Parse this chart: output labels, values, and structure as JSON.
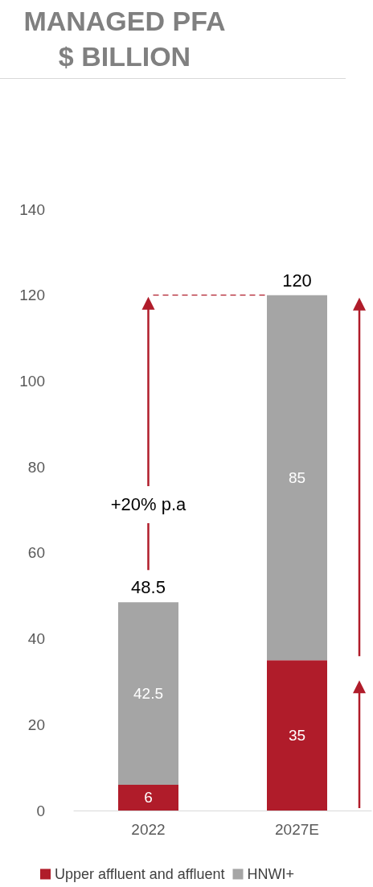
{
  "chart_data": {
    "type": "bar",
    "title": "MANAGED PFA\n$ BILLION",
    "categories": [
      "2022",
      "2027E"
    ],
    "stacked": true,
    "series": [
      {
        "name": "Upper affluent and affluent",
        "color": "#b01c2a",
        "values": [
          6,
          35
        ]
      },
      {
        "name": "HNWI+",
        "color": "#a5a5a5",
        "values": [
          42.5,
          85
        ]
      }
    ],
    "ylim": [
      0,
      140
    ],
    "yticks": [
      0,
      20,
      40,
      60,
      80,
      100,
      120,
      140
    ],
    "grid": false,
    "legend": "bottom",
    "data_labels": true,
    "totals": [
      "48.5",
      "120"
    ],
    "annotations": [
      "+20% p.a"
    ]
  }
}
